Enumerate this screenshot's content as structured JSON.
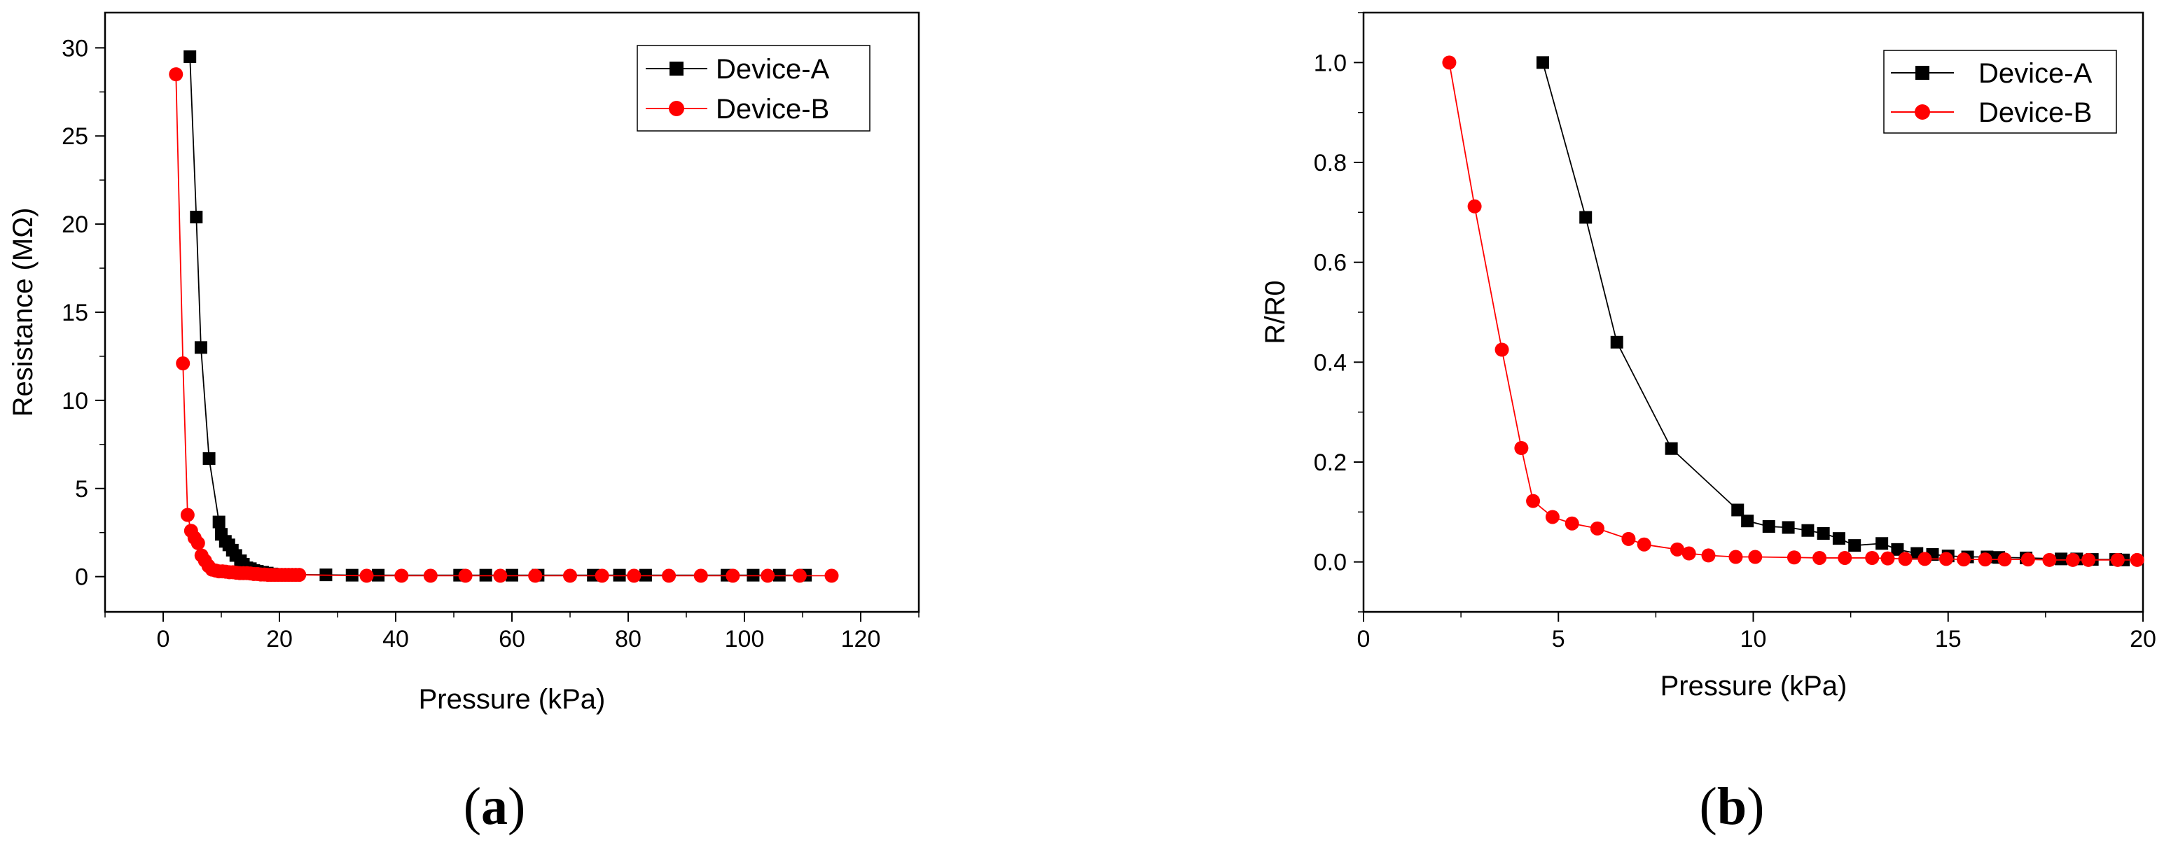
{
  "panels": {
    "a": {
      "label_open": "(",
      "label_letter": "a",
      "label_close": ")"
    },
    "b": {
      "label_open": "(",
      "label_letter": "b",
      "label_close": ")"
    }
  },
  "chart_data": [
    {
      "type": "line",
      "xlabel": "Pressure (kPa)",
      "ylabel": "Resistance (MΩ)",
      "xlim": [
        -10,
        130
      ],
      "ylim": [
        -2,
        32
      ],
      "xticks": [
        0,
        20,
        40,
        60,
        80,
        100,
        120
      ],
      "yticks": [
        0,
        5,
        10,
        15,
        20,
        25,
        30
      ],
      "grid": false,
      "legend": "top-right",
      "series": [
        {
          "name": "Device-A",
          "color": "#000000",
          "marker": "square",
          "x": [
            4.6,
            5.7,
            6.5,
            7.9,
            9.6,
            10.0,
            10.7,
            11.3,
            11.9,
            12.5,
            13.3,
            13.8,
            14.4,
            15.0,
            15.6,
            16.2,
            17.1,
            17.9,
            18.7,
            19.3,
            28,
            32.5,
            37,
            51,
            55.5,
            60,
            64.5,
            74,
            78.5,
            83,
            97,
            101.5,
            106,
            110.5
          ],
          "y": [
            29.5,
            20.4,
            13.0,
            6.7,
            3.1,
            2.4,
            2.0,
            1.8,
            1.5,
            1.2,
            0.9,
            0.7,
            0.5,
            0.45,
            0.35,
            0.3,
            0.25,
            0.2,
            0.15,
            0.12,
            0.1,
            0.08,
            0.08,
            0.08,
            0.08,
            0.08,
            0.08,
            0.08,
            0.08,
            0.08,
            0.08,
            0.08,
            0.08,
            0.08
          ]
        },
        {
          "name": "Device-B",
          "color": "#ff0000",
          "marker": "circle",
          "x": [
            2.2,
            3.4,
            4.2,
            4.8,
            5.4,
            6.0,
            6.6,
            7.2,
            7.8,
            8.4,
            9.0,
            9.6,
            10.2,
            10.8,
            11.4,
            12.0,
            12.6,
            13.2,
            13.8,
            14.4,
            15.0,
            15.6,
            16.2,
            16.8,
            17.4,
            18.0,
            18.6,
            19.2,
            19.8,
            20.4,
            21.0,
            21.6,
            22.2,
            22.8,
            23.4,
            35,
            41,
            46,
            52,
            58,
            64,
            70,
            75.5,
            81,
            87,
            92.5,
            98,
            104,
            109.5,
            115
          ],
          "y": [
            28.5,
            12.1,
            3.5,
            2.6,
            2.2,
            1.9,
            1.2,
            0.9,
            0.6,
            0.4,
            0.35,
            0.3,
            0.3,
            0.28,
            0.25,
            0.25,
            0.22,
            0.2,
            0.2,
            0.2,
            0.18,
            0.15,
            0.15,
            0.12,
            0.12,
            0.1,
            0.1,
            0.1,
            0.1,
            0.1,
            0.1,
            0.1,
            0.1,
            0.1,
            0.1,
            0.05,
            0.05,
            0.05,
            0.05,
            0.05,
            0.05,
            0.05,
            0.05,
            0.05,
            0.05,
            0.05,
            0.05,
            0.05,
            0.05,
            0.05
          ]
        }
      ]
    },
    {
      "type": "line",
      "xlabel": "Pressure (kPa)",
      "ylabel": "R/R0",
      "xlim": [
        0,
        20
      ],
      "ylim": [
        -0.1,
        1.1
      ],
      "xticks": [
        0,
        5,
        10,
        15,
        20
      ],
      "yticks": [
        0.0,
        0.2,
        0.4,
        0.6,
        0.8,
        1.0
      ],
      "grid": false,
      "legend": "top-right",
      "series": [
        {
          "name": "Device-A",
          "color": "#000000",
          "marker": "square",
          "x": [
            4.6,
            5.7,
            6.5,
            7.9,
            9.6,
            9.85,
            10.4,
            10.9,
            11.4,
            11.8,
            12.2,
            12.6,
            13.3,
            13.7,
            14.2,
            14.6,
            15.0,
            15.5,
            16.0,
            16.3,
            17.0,
            17.9,
            18.3,
            18.7,
            19.3,
            19.5
          ],
          "y": [
            1.0,
            0.69,
            0.44,
            0.227,
            0.104,
            0.082,
            0.071,
            0.069,
            0.063,
            0.057,
            0.047,
            0.033,
            0.037,
            0.025,
            0.017,
            0.015,
            0.012,
            0.01,
            0.01,
            0.009,
            0.008,
            0.006,
            0.006,
            0.005,
            0.005,
            0.004
          ]
        },
        {
          "name": "Device-B",
          "color": "#ff0000",
          "marker": "circle",
          "x": [
            2.2,
            2.85,
            3.55,
            4.05,
            4.35,
            4.85,
            5.35,
            6.0,
            6.8,
            7.2,
            8.05,
            8.35,
            8.85,
            9.55,
            10.05,
            11.05,
            11.7,
            12.35,
            13.05,
            13.45,
            13.9,
            14.4,
            14.95,
            15.4,
            15.95,
            16.45,
            17.05,
            17.6,
            18.2,
            18.6,
            19.35,
            19.85
          ],
          "y": [
            1.0,
            0.712,
            0.425,
            0.228,
            0.122,
            0.09,
            0.077,
            0.067,
            0.046,
            0.035,
            0.025,
            0.017,
            0.013,
            0.01,
            0.01,
            0.009,
            0.008,
            0.008,
            0.008,
            0.007,
            0.006,
            0.006,
            0.006,
            0.005,
            0.005,
            0.005,
            0.005,
            0.004,
            0.004,
            0.004,
            0.004,
            0.004
          ]
        }
      ]
    }
  ]
}
